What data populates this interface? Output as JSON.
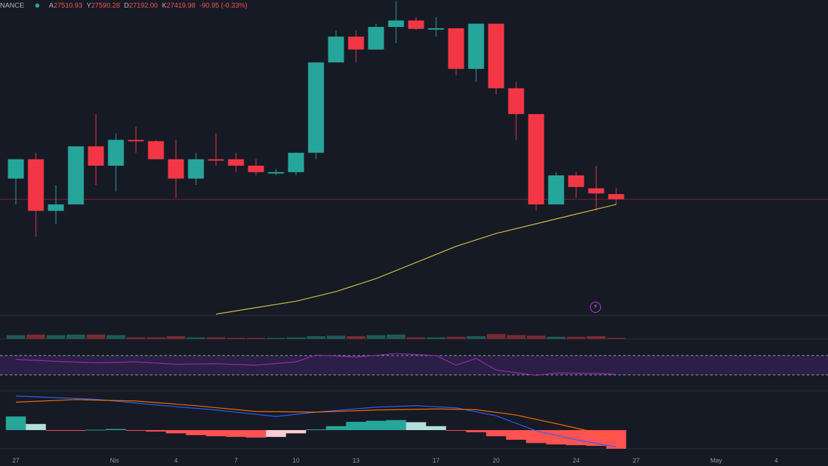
{
  "header": {
    "exchange": "NANCE",
    "open_label": "A",
    "open": "27510.93",
    "high_label": "Y",
    "high": "27590.28",
    "low_label": "D",
    "low": "27192.00",
    "close_label": "K",
    "close": "27419.98",
    "change": "-90.95 (-0.33%)"
  },
  "colors": {
    "background": "#161a25",
    "bull": "#26a69a",
    "bear": "#f23645",
    "ma": "#d4c54a",
    "rsi": "#9c27b0",
    "macd": "#2962ff",
    "signal": "#ff6d00"
  },
  "icons": {
    "alert": "lightning-icon"
  },
  "chart_data": {
    "type": "candlestick",
    "x_tick_labels": [
      "27",
      "Nis",
      "4",
      "7",
      "10",
      "13",
      "17",
      "20",
      "24",
      "27",
      "May",
      "4"
    ],
    "price_range": [
      26100,
      30700
    ],
    "candles": [
      {
        "o": 28200,
        "h": 28500,
        "l": 27800,
        "c": 28500
      },
      {
        "o": 28500,
        "h": 28600,
        "l": 27300,
        "c": 27700
      },
      {
        "o": 27700,
        "h": 28100,
        "l": 27500,
        "c": 27800
      },
      {
        "o": 27800,
        "h": 28700,
        "l": 27800,
        "c": 28700
      },
      {
        "o": 28700,
        "h": 29200,
        "l": 28100,
        "c": 28400
      },
      {
        "o": 28400,
        "h": 28900,
        "l": 28000,
        "c": 28800
      },
      {
        "o": 28800,
        "h": 29000,
        "l": 28600,
        "c": 28780
      },
      {
        "o": 28780,
        "h": 28800,
        "l": 28500,
        "c": 28500
      },
      {
        "o": 28500,
        "h": 28800,
        "l": 27900,
        "c": 28200
      },
      {
        "o": 28200,
        "h": 28600,
        "l": 28100,
        "c": 28500
      },
      {
        "o": 28500,
        "h": 28900,
        "l": 28400,
        "c": 28490
      },
      {
        "o": 28500,
        "h": 28600,
        "l": 28300,
        "c": 28400
      },
      {
        "o": 28400,
        "h": 28500,
        "l": 28250,
        "c": 28300
      },
      {
        "o": 28280,
        "h": 28350,
        "l": 28250,
        "c": 28300
      },
      {
        "o": 28300,
        "h": 28600,
        "l": 28250,
        "c": 28600
      },
      {
        "o": 28600,
        "h": 30000,
        "l": 28500,
        "c": 30000
      },
      {
        "o": 30000,
        "h": 30500,
        "l": 30000,
        "c": 30400
      },
      {
        "o": 30400,
        "h": 30500,
        "l": 30000,
        "c": 30200
      },
      {
        "o": 30200,
        "h": 30600,
        "l": 30200,
        "c": 30550
      },
      {
        "o": 30550,
        "h": 30950,
        "l": 30300,
        "c": 30650
      },
      {
        "o": 30650,
        "h": 30700,
        "l": 30500,
        "c": 30520
      },
      {
        "o": 30520,
        "h": 30700,
        "l": 30400,
        "c": 30530
      },
      {
        "o": 30530,
        "h": 30530,
        "l": 29800,
        "c": 29900
      },
      {
        "o": 29900,
        "h": 30600,
        "l": 29700,
        "c": 30600
      },
      {
        "o": 30600,
        "h": 30600,
        "l": 29500,
        "c": 29600
      },
      {
        "o": 29600,
        "h": 29700,
        "l": 28800,
        "c": 29200
      },
      {
        "o": 29200,
        "h": 29200,
        "l": 27700,
        "c": 27800
      },
      {
        "o": 27800,
        "h": 28300,
        "l": 27800,
        "c": 28250
      },
      {
        "o": 28250,
        "h": 28300,
        "l": 27900,
        "c": 28070
      },
      {
        "o": 28050,
        "h": 28400,
        "l": 27700,
        "c": 27970
      },
      {
        "o": 27960,
        "h": 28050,
        "l": 27800,
        "c": 27880
      }
    ],
    "moving_average": [
      {
        "i": 10,
        "v": 26100
      },
      {
        "i": 12,
        "v": 26200
      },
      {
        "i": 14,
        "v": 26300
      },
      {
        "i": 16,
        "v": 26450
      },
      {
        "i": 18,
        "v": 26650
      },
      {
        "i": 20,
        "v": 26900
      },
      {
        "i": 22,
        "v": 27150
      },
      {
        "i": 24,
        "v": 27350
      },
      {
        "i": 26,
        "v": 27500
      },
      {
        "i": 28,
        "v": 27650
      },
      {
        "i": 30,
        "v": 27800
      }
    ],
    "volume": [
      0.7,
      0.8,
      0.7,
      0.8,
      0.8,
      0.7,
      0.3,
      0.3,
      0.5,
      0.3,
      0.3,
      0.2,
      0.2,
      0.2,
      0.3,
      0.5,
      0.6,
      0.5,
      0.7,
      0.8,
      0.3,
      0.3,
      0.4,
      0.5,
      0.9,
      0.7,
      0.6,
      0.4,
      0.4,
      0.5,
      0.2
    ],
    "rsi": {
      "range": [
        0,
        100
      ],
      "upper": 70,
      "lower": 30,
      "values": [
        {
          "i": 0,
          "v": 62
        },
        {
          "i": 2,
          "v": 58
        },
        {
          "i": 4,
          "v": 55
        },
        {
          "i": 6,
          "v": 57
        },
        {
          "i": 8,
          "v": 52
        },
        {
          "i": 10,
          "v": 53
        },
        {
          "i": 12,
          "v": 50
        },
        {
          "i": 14,
          "v": 57
        },
        {
          "i": 15,
          "v": 71
        },
        {
          "i": 17,
          "v": 67
        },
        {
          "i": 19,
          "v": 74
        },
        {
          "i": 21,
          "v": 70
        },
        {
          "i": 22,
          "v": 50
        },
        {
          "i": 23,
          "v": 64
        },
        {
          "i": 24,
          "v": 40
        },
        {
          "i": 26,
          "v": 29
        },
        {
          "i": 27,
          "v": 34
        },
        {
          "i": 29,
          "v": 33
        },
        {
          "i": 30,
          "v": 31
        }
      ]
    },
    "macd": {
      "range": [
        -520,
        1020
      ],
      "macd_line": [
        {
          "i": 0,
          "v": 950
        },
        {
          "i": 4,
          "v": 860
        },
        {
          "i": 7,
          "v": 700
        },
        {
          "i": 10,
          "v": 560
        },
        {
          "i": 13,
          "v": 380
        },
        {
          "i": 15,
          "v": 500
        },
        {
          "i": 18,
          "v": 640
        },
        {
          "i": 20,
          "v": 680
        },
        {
          "i": 22,
          "v": 620
        },
        {
          "i": 24,
          "v": 400
        },
        {
          "i": 26,
          "v": -20
        },
        {
          "i": 28,
          "v": -270
        },
        {
          "i": 30,
          "v": -470
        }
      ],
      "signal_line": [
        {
          "i": 0,
          "v": 780
        },
        {
          "i": 3,
          "v": 850
        },
        {
          "i": 6,
          "v": 810
        },
        {
          "i": 9,
          "v": 680
        },
        {
          "i": 12,
          "v": 520
        },
        {
          "i": 15,
          "v": 500
        },
        {
          "i": 18,
          "v": 560
        },
        {
          "i": 21,
          "v": 590
        },
        {
          "i": 23,
          "v": 570
        },
        {
          "i": 25,
          "v": 420
        },
        {
          "i": 27,
          "v": 180
        },
        {
          "i": 29,
          "v": -70
        },
        {
          "i": 30,
          "v": -170
        }
      ],
      "histogram": [
        380,
        170,
        -20,
        -20,
        10,
        30,
        -20,
        -40,
        -90,
        -140,
        -170,
        -190,
        -210,
        -190,
        -90,
        20,
        110,
        230,
        260,
        280,
        220,
        110,
        -10,
        -60,
        -170,
        -270,
        -360,
        -400,
        -420,
        -440,
        -520
      ]
    }
  }
}
